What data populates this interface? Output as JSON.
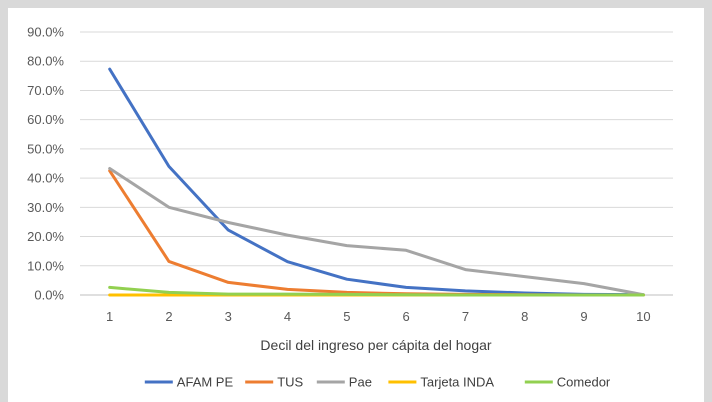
{
  "chart_data": {
    "type": "line",
    "title": "",
    "xlabel": "Decil del ingreso per cápita del hogar",
    "ylabel": "",
    "categories": [
      "1",
      "2",
      "3",
      "4",
      "5",
      "6",
      "7",
      "8",
      "9",
      "10"
    ],
    "ylim": [
      0,
      90
    ],
    "yticks": [
      "0.0%",
      "10.0%",
      "20.0%",
      "30.0%",
      "40.0%",
      "50.0%",
      "60.0%",
      "70.0%",
      "80.0%",
      "90.0%"
    ],
    "grid": true,
    "legend_position": "bottom",
    "series": [
      {
        "name": "AFAM PE",
        "color": "#4472c4",
        "values": [
          77.3,
          44.0,
          22.2,
          11.4,
          5.4,
          2.6,
          1.4,
          0.7,
          0.2,
          0.1
        ]
      },
      {
        "name": "TUS",
        "color": "#ed7d31",
        "values": [
          42.5,
          11.5,
          4.3,
          1.9,
          0.9,
          0.4,
          0.2,
          0.1,
          0.0,
          0.0
        ]
      },
      {
        "name": "Pae",
        "color": "#a5a5a5",
        "values": [
          43.3,
          30.0,
          24.8,
          20.5,
          16.9,
          15.3,
          8.7,
          6.3,
          3.9,
          0.1
        ]
      },
      {
        "name": "Tarjeta INDA",
        "color": "#ffc000",
        "values": [
          0.0,
          0.0,
          0.0,
          0.0,
          0.0,
          0.0,
          0.0,
          0.0,
          0.0,
          0.0
        ]
      },
      {
        "name": "Comedor",
        "color": "#92d050",
        "values": [
          2.6,
          0.9,
          0.3,
          0.3,
          0.2,
          0.1,
          0.0,
          0.0,
          0.0,
          0.0
        ]
      }
    ]
  }
}
